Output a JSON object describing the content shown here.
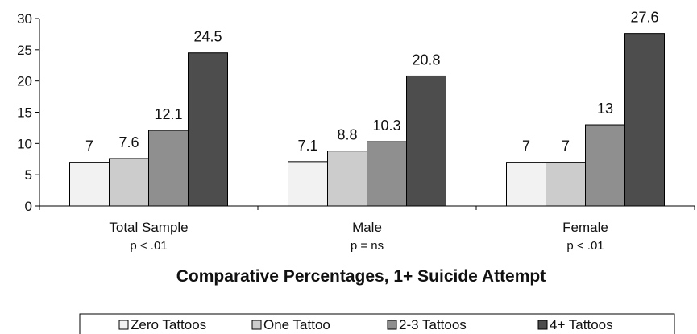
{
  "chart_data": {
    "type": "bar",
    "title": "Comparative Percentages, 1+ Suicide Attempt",
    "categories": [
      "Total Sample",
      "Male",
      "Female"
    ],
    "category_sublabels": [
      "p < .01",
      "p = ns",
      "p < .01"
    ],
    "yticks": [
      "0",
      "5",
      "10",
      "15",
      "20",
      "25",
      "30"
    ],
    "ylim": [
      0,
      30
    ],
    "grid": false,
    "legend_position": "bottom",
    "series": [
      {
        "name": "Zero Tattoos",
        "color": "#f2f2f2",
        "values": [
          7,
          7.1,
          7
        ]
      },
      {
        "name": "One Tattoo",
        "color": "#cccccc",
        "values": [
          7.6,
          8.8,
          7
        ]
      },
      {
        "name": "2-3 Tattoos",
        "color": "#8f8f8f",
        "values": [
          12.1,
          10.3,
          13
        ]
      },
      {
        "name": "4+ Tattoos",
        "color": "#4d4d4d",
        "values": [
          24.5,
          20.8,
          27.6
        ]
      }
    ],
    "data_labels": [
      [
        "7",
        "7.1",
        "7"
      ],
      [
        "7.6",
        "8.8",
        "7"
      ],
      [
        "12.1",
        "10.3",
        "13"
      ],
      [
        "24.5",
        "20.8",
        "27.6"
      ]
    ]
  }
}
